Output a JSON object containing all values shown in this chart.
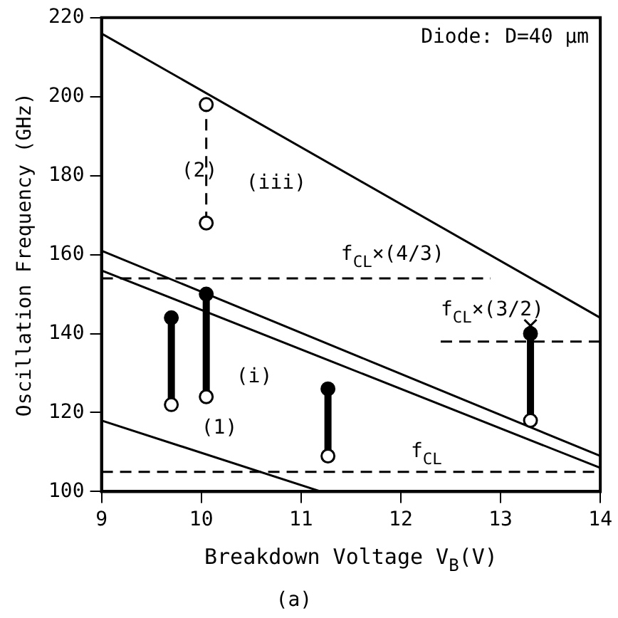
{
  "chart_data": {
    "type": "line",
    "xlabel": "Breakdown Voltage V$_{B}$(V)",
    "ylabel": "Oscillation Frequency (GHz)",
    "xlim": [
      9,
      14
    ],
    "xticks": [
      9,
      10,
      11,
      12,
      13,
      14
    ],
    "ylim": [
      100,
      220
    ],
    "yticks": [
      100,
      120,
      140,
      160,
      180,
      200,
      220
    ],
    "grid": false,
    "legend": false,
    "marker": "none",
    "line_style": "solid",
    "series": [
      {
        "type": "line",
        "x": [
          9,
          14
        ],
        "values": [
          216,
          144
        ],
        "color": "#000000"
      },
      {
        "type": "line",
        "x": [
          9,
          14
        ],
        "values": [
          161,
          109
        ],
        "color": "#000000"
      },
      {
        "type": "line",
        "x": [
          9,
          14
        ],
        "values": [
          156,
          106
        ],
        "color": "#000000"
      },
      {
        "type": "line",
        "x": [
          9,
          11.2
        ],
        "values": [
          118,
          100
        ],
        "color": "#000000"
      },
      {
        "type": "line",
        "x": [
          9,
          12.9
        ],
        "values": [
          154,
          154
        ],
        "color": "#000000",
        "line_style": "dashed"
      },
      {
        "type": "line",
        "x": [
          12.4,
          14
        ],
        "values": [
          138,
          138
        ],
        "color": "#000000",
        "line_style": "dashed"
      },
      {
        "type": "line",
        "x": [
          9,
          14
        ],
        "values": [
          105,
          105
        ],
        "color": "#000000",
        "line_style": "dashed"
      },
      {
        "type": "line",
        "x": [
          9.7,
          9.7
        ],
        "values": [
          122,
          144
        ],
        "color": "#000000"
      },
      {
        "type": "line",
        "x": [
          10.05,
          10.05
        ],
        "values": [
          124,
          150
        ],
        "color": "#000000"
      },
      {
        "type": "line",
        "x": [
          11.27,
          11.27
        ],
        "values": [
          109,
          126
        ],
        "color": "#000000"
      },
      {
        "type": "line",
        "x": [
          13.3,
          13.3
        ],
        "values": [
          118,
          140
        ],
        "color": "#000000"
      },
      {
        "type": "line",
        "x": [
          10.05,
          10.05
        ],
        "values": [
          168,
          198
        ],
        "color": "#000000",
        "line_style": "dashed"
      },
      {
        "type": "scatter",
        "x": [
          9.7,
          10.05,
          11.27,
          13.3
        ],
        "values": [
          144,
          150,
          126,
          140
        ],
        "color": "#000000",
        "marker": "circle"
      },
      {
        "type": "scatter",
        "x": [
          9.7,
          10.05,
          11.27,
          13.3,
          10.05,
          10.05
        ],
        "values": [
          122,
          124,
          109,
          118,
          198,
          168
        ],
        "color": "#ffffff",
        "marker": "circle"
      },
      {
        "type": "scatter",
        "x": [
          13.3
        ],
        "values": [
          142
        ],
        "color": "#000000",
        "marker": "cross"
      }
    ],
    "annotations": [
      "Diode: D=40 µm",
      "(a)",
      "(2)",
      "(iii)",
      "(i)",
      "(1)",
      "f$_{CL}$×(4/3)",
      "f$_{CL}$×(3/2)",
      "f$_{CL}$"
    ]
  }
}
